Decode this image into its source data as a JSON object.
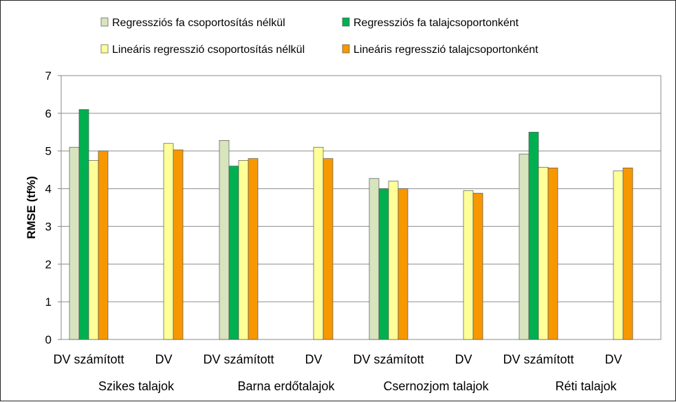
{
  "chart_data": {
    "type": "bar",
    "ylabel": "RMSE (tf%)",
    "ylim": [
      0,
      7
    ],
    "yticks": [
      0,
      1,
      2,
      3,
      4,
      5,
      6,
      7
    ],
    "grid": true,
    "legend_position": "top",
    "groups": [
      {
        "label": "Szikes talajok",
        "subcategories": [
          "DV számított",
          "DV"
        ]
      },
      {
        "label": "Barna erdőtalajok",
        "subcategories": [
          "DV számított",
          "DV"
        ]
      },
      {
        "label": "Csernozjom talajok",
        "subcategories": [
          "DV számított",
          "DV"
        ]
      },
      {
        "label": "Réti talajok",
        "subcategories": [
          "DV számított",
          "DV"
        ]
      }
    ],
    "series": [
      {
        "name": "Regressziós fa csoportosítás nélkül",
        "color": "#D7E4BD",
        "values": [
          5.1,
          null,
          5.28,
          null,
          4.27,
          null,
          4.92,
          null
        ]
      },
      {
        "name": "Regressziós fa talajcsoportonként",
        "color": "#00B050",
        "values": [
          6.1,
          null,
          4.6,
          null,
          4.0,
          null,
          5.5,
          null
        ]
      },
      {
        "name": "Lineáris regresszió csoportosítás nélkül",
        "color": "#FFFF99",
        "values": [
          4.75,
          5.2,
          4.75,
          5.1,
          4.2,
          3.95,
          4.57,
          4.47
        ]
      },
      {
        "name": "Lineáris regresszió talajcsoportonként",
        "color": "#F79800",
        "values": [
          5.0,
          5.03,
          4.8,
          4.8,
          4.0,
          3.88,
          4.55,
          4.55
        ]
      }
    ]
  }
}
